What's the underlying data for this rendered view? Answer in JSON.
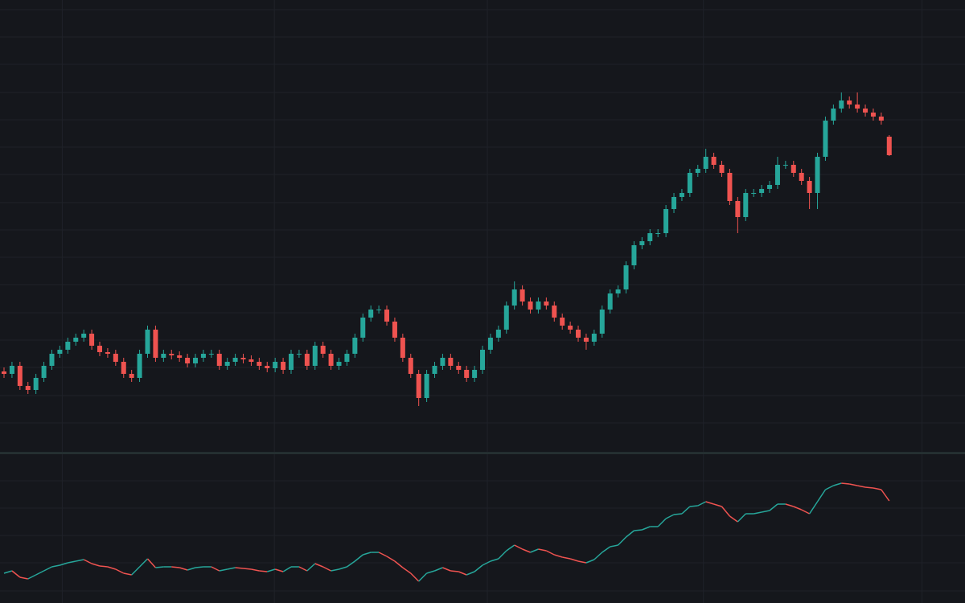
{
  "chart_data": [
    {
      "type": "candlestick",
      "up_color": "#26a69a",
      "down_color": "#ef5350",
      "grid": true,
      "ylim": [
        0,
        562
      ],
      "yticks": [
        36,
        70,
        105,
        139,
        173,
        208,
        242,
        276,
        310,
        345,
        379,
        413,
        447,
        482,
        516,
        550
      ],
      "xlim": [
        -0.5,
        120
      ],
      "xticks": [
        7.3,
        33.9,
        60.6,
        87.7,
        115.1
      ],
      "open": [
        100,
        97,
        107,
        82,
        77,
        92,
        107,
        122,
        127,
        137,
        142,
        147,
        132,
        124,
        122,
        112,
        97,
        92,
        122,
        152,
        117,
        122,
        120,
        117,
        110,
        117,
        122,
        122,
        107,
        112,
        117,
        115,
        112,
        107,
        104,
        112,
        102,
        122,
        122,
        107,
        132,
        122,
        107,
        112,
        122,
        142,
        167,
        177,
        177,
        162,
        142,
        117,
        97,
        67,
        97,
        107,
        117,
        107,
        102,
        92,
        102,
        127,
        142,
        152,
        182,
        202,
        187,
        177,
        187,
        182,
        167,
        157,
        152,
        142,
        137,
        147,
        177,
        197,
        202,
        232,
        257,
        262,
        272,
        272,
        302,
        317,
        322,
        347,
        352,
        367,
        357,
        347,
        312,
        292,
        322,
        322,
        327,
        332,
        357,
        357,
        347,
        337,
        322,
        367,
        412,
        427,
        437,
        432,
        427,
        422,
        417,
        392
      ],
      "high": [
        105,
        112,
        112,
        87,
        97,
        112,
        127,
        132,
        142,
        147,
        152,
        152,
        137,
        129,
        127,
        117,
        102,
        127,
        157,
        157,
        127,
        127,
        125,
        122,
        122,
        127,
        127,
        127,
        117,
        122,
        122,
        120,
        117,
        112,
        117,
        117,
        127,
        127,
        127,
        137,
        137,
        127,
        117,
        127,
        147,
        172,
        182,
        182,
        182,
        167,
        147,
        122,
        102,
        102,
        112,
        122,
        122,
        112,
        107,
        107,
        132,
        147,
        157,
        187,
        212,
        207,
        192,
        192,
        192,
        187,
        172,
        162,
        157,
        147,
        152,
        182,
        202,
        207,
        237,
        262,
        267,
        277,
        277,
        307,
        322,
        327,
        352,
        357,
        377,
        372,
        362,
        352,
        317,
        327,
        327,
        332,
        337,
        367,
        362,
        362,
        352,
        342,
        372,
        417,
        432,
        447,
        442,
        447,
        432,
        427,
        422,
        394
      ],
      "low": [
        92,
        92,
        77,
        72,
        72,
        87,
        102,
        117,
        122,
        132,
        137,
        127,
        119,
        117,
        107,
        92,
        87,
        87,
        117,
        112,
        112,
        115,
        112,
        105,
        105,
        112,
        117,
        102,
        102,
        107,
        110,
        107,
        102,
        99,
        99,
        97,
        97,
        117,
        102,
        102,
        117,
        102,
        102,
        107,
        117,
        137,
        162,
        172,
        157,
        137,
        112,
        92,
        57,
        62,
        92,
        102,
        102,
        97,
        87,
        87,
        97,
        122,
        137,
        147,
        177,
        182,
        172,
        172,
        177,
        162,
        152,
        147,
        137,
        127,
        132,
        142,
        172,
        192,
        197,
        227,
        252,
        257,
        267,
        267,
        297,
        312,
        317,
        342,
        347,
        352,
        342,
        307,
        272,
        287,
        317,
        317,
        322,
        327,
        352,
        342,
        332,
        302,
        302,
        362,
        407,
        422,
        427,
        422,
        417,
        412,
        407,
        368
      ],
      "close": [
        97,
        107,
        82,
        77,
        92,
        107,
        122,
        127,
        137,
        142,
        147,
        132,
        124,
        122,
        112,
        97,
        92,
        122,
        152,
        117,
        122,
        120,
        117,
        110,
        117,
        122,
        122,
        107,
        112,
        117,
        115,
        112,
        107,
        104,
        112,
        102,
        122,
        122,
        107,
        132,
        122,
        107,
        112,
        122,
        142,
        167,
        177,
        177,
        162,
        142,
        117,
        97,
        67,
        97,
        107,
        117,
        107,
        102,
        92,
        102,
        127,
        142,
        152,
        182,
        202,
        187,
        177,
        187,
        182,
        167,
        157,
        152,
        142,
        137,
        147,
        177,
        197,
        202,
        232,
        257,
        262,
        272,
        272,
        302,
        317,
        322,
        347,
        352,
        367,
        357,
        347,
        312,
        292,
        322,
        322,
        327,
        332,
        357,
        357,
        347,
        337,
        322,
        367,
        412,
        427,
        437,
        432,
        427,
        422,
        417,
        412,
        369
      ]
    },
    {
      "type": "line",
      "up_color": "#26a69a",
      "down_color": "#ef5350",
      "grid": true,
      "ylim": [
        0,
        185
      ],
      "yticks": [
        15,
        50,
        84,
        118,
        152
      ],
      "xlim": [
        -0.5,
        120
      ],
      "xticks": [
        7.3,
        33.9,
        60.6,
        87.7,
        115.1
      ],
      "values": [
        37,
        40,
        32,
        30,
        35,
        40,
        45,
        47,
        50,
        52,
        54,
        49,
        46,
        45,
        42,
        37,
        35,
        45,
        55,
        44,
        45,
        45,
        44,
        41,
        44,
        45,
        45,
        40,
        42,
        44,
        43,
        42,
        40,
        39,
        42,
        39,
        45,
        45,
        40,
        49,
        45,
        40,
        42,
        45,
        52,
        60,
        63,
        63,
        58,
        52,
        44,
        37,
        27,
        37,
        40,
        44,
        40,
        39,
        35,
        39,
        47,
        52,
        55,
        65,
        72,
        67,
        63,
        67,
        65,
        60,
        57,
        55,
        52,
        50,
        54,
        63,
        70,
        72,
        82,
        90,
        91,
        95,
        95,
        105,
        110,
        111,
        120,
        121,
        126,
        123,
        120,
        108,
        101,
        111,
        111,
        113,
        115,
        123,
        123,
        120,
        116,
        111,
        126,
        141,
        146,
        149,
        148,
        146,
        144,
        143,
        141,
        127
      ]
    }
  ]
}
